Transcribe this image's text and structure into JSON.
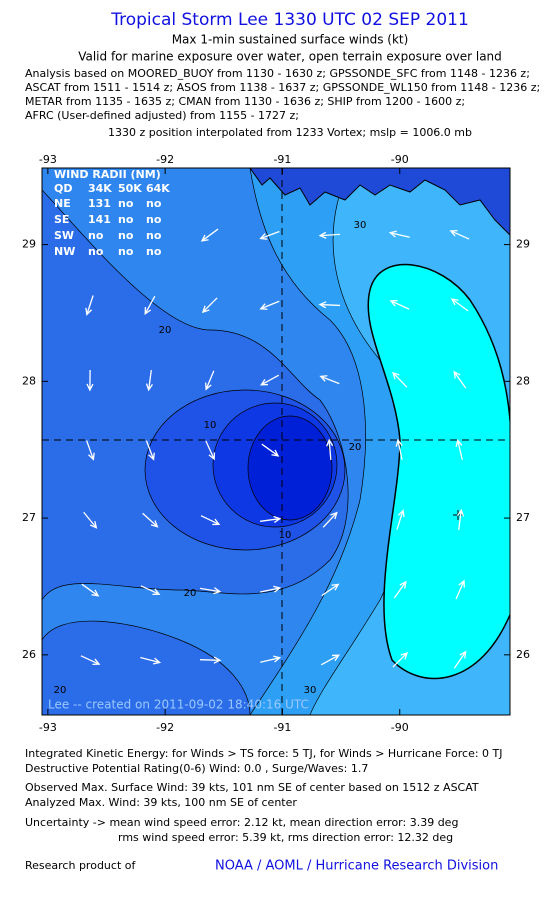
{
  "header": {
    "title": "Tropical Storm Lee 1330 UTC 02 SEP 2011",
    "subtitle": "Max 1-min sustained surface winds (kt)",
    "validity": "Valid for marine exposure over water, open terrain exposure over land",
    "analysis_lines": [
      "Analysis based on MOORED_BUOY from 1130 - 1630 z; GPSSONDE_SFC from 1148 - 1236 z;",
      "ASCAT from 1511 - 1514 z; ASOS from 1138 - 1637 z; GPSSONDE_WL150 from 1148 - 1236 z;",
      "METAR from 1135 - 1635 z; CMAN from 1130 - 1636 z; SHIP from 1200 - 1600 z;",
      "AFRC (User-defined adjusted) from 1155 - 1727 z;"
    ],
    "position": "1330 z position interpolated from 1233 Vortex; mslp = 1006.0 mb"
  },
  "map": {
    "xlim": [
      -93.05,
      -89.06
    ],
    "ylim": [
      25.56,
      29.56
    ],
    "xticks": [
      -93,
      -92,
      -91,
      -90
    ],
    "yticks": [
      26,
      27,
      28,
      29
    ],
    "contour_labels": [
      "30",
      "20",
      "10",
      "20",
      "10",
      "20",
      "20",
      "30"
    ],
    "credit": "Lee -- created on 2011-09-02 18:40:16 UTC",
    "radii": {
      "title": "WIND RADII (NM)",
      "columns": [
        "QD",
        "34K",
        "50K",
        "64K"
      ],
      "rows": [
        [
          "NE",
          131,
          "no",
          "no"
        ],
        [
          "SE",
          141,
          "no",
          "no"
        ],
        [
          "SW",
          "no",
          "no",
          "no"
        ],
        [
          "NW",
          "no",
          "no",
          "no"
        ]
      ]
    }
  },
  "footer": {
    "lines": [
      "Integrated Kinetic Energy:  for Winds > TS force: 5 TJ,  for Winds > Hurricane Force: 0 TJ",
      "Destructive Potential Rating(0-6)   Wind: 0.0 , Surge/Waves: 1.7",
      "Observed Max. Surface Wind: 39 kts, 101 nm SE of center based on 1512 z ASCAT",
      "Analyzed Max. Wind: 39 kts, 100 nm SE of center",
      "Uncertainty -> mean wind speed error: 2.12 kt,   mean direction error: 3.39 deg",
      "rms wind speed error: 5.39 kt,   rms direction error: 12.32 deg"
    ],
    "research": "Research product of",
    "org": "NOAA / AOML / Hurricane Research Division"
  }
}
